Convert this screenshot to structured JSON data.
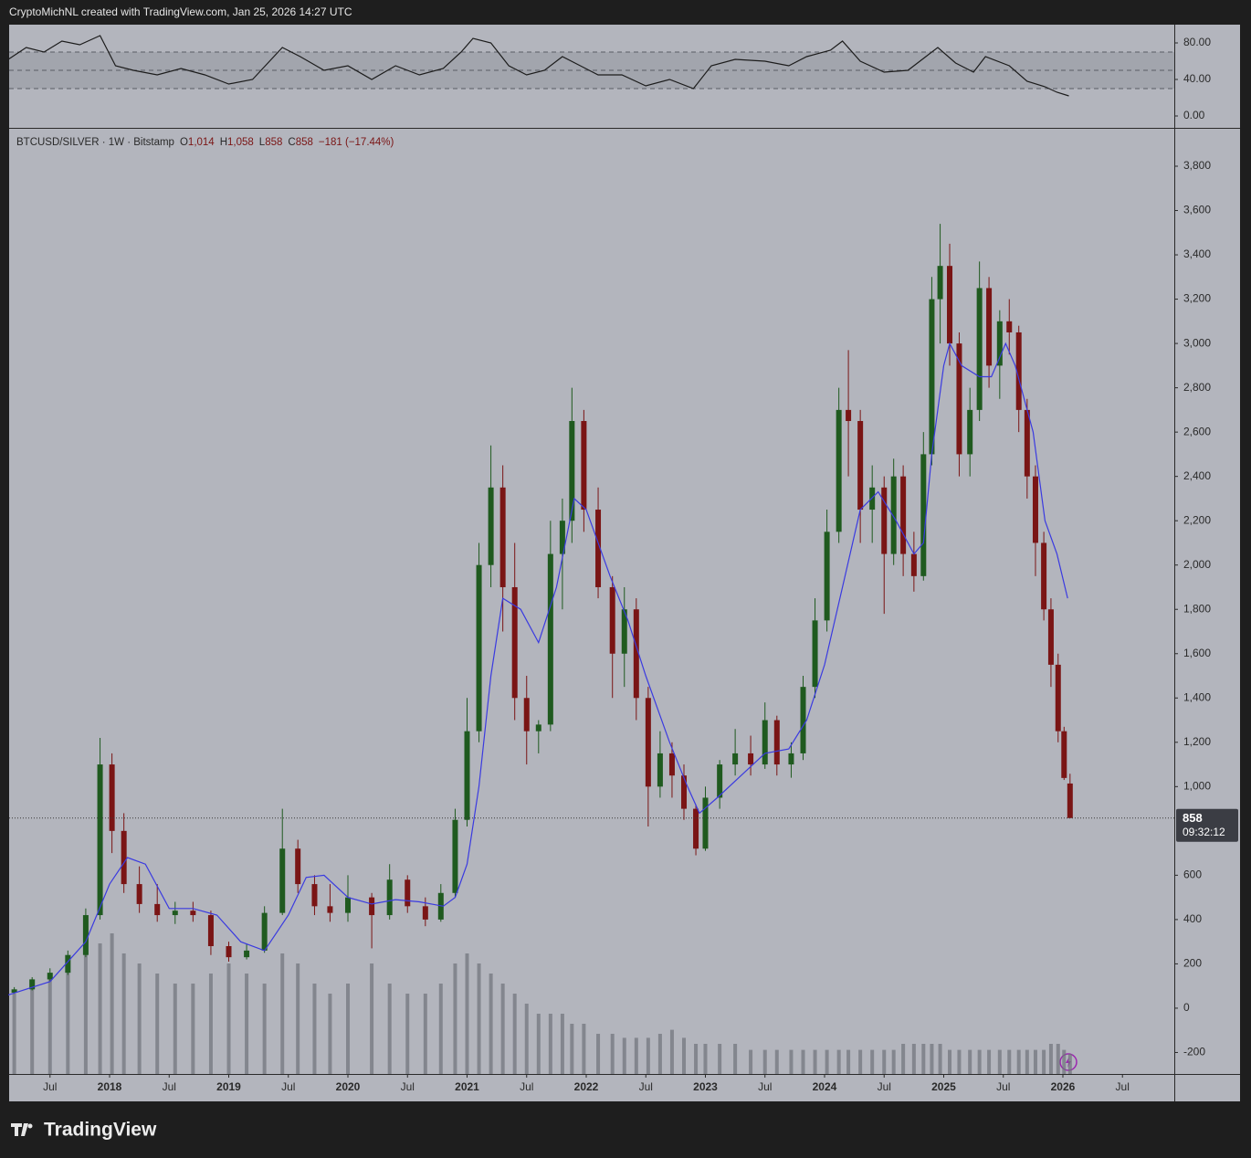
{
  "header": "CryptoMichNL created with TradingView.com, Jan 25, 2026 14:27 UTC",
  "brand": "TradingView",
  "chart_data": [
    {
      "type": "line",
      "xlim": [
        2017.157,
        2026.935
      ],
      "ylim": [
        -13,
        100
      ],
      "yticks": [
        {
          "value": 80,
          "label": "80.00"
        },
        {
          "value": 40,
          "label": "40.00"
        },
        {
          "value": 0,
          "label": "0.00"
        }
      ],
      "levels": [
        70,
        50,
        30
      ],
      "color": "#1c1c1c",
      "x": [
        2017.15,
        2017.3,
        2017.45,
        2017.6,
        2017.75,
        2017.92,
        2018.05,
        2018.2,
        2018.4,
        2018.6,
        2018.8,
        2019.0,
        2019.2,
        2019.45,
        2019.6,
        2019.8,
        2020.0,
        2020.2,
        2020.4,
        2020.6,
        2020.8,
        2020.95,
        2021.05,
        2021.2,
        2021.35,
        2021.5,
        2021.65,
        2021.8,
        2021.95,
        2022.1,
        2022.3,
        2022.5,
        2022.7,
        2022.9,
        2023.05,
        2023.25,
        2023.5,
        2023.7,
        2023.85,
        2024.05,
        2024.15,
        2024.3,
        2024.5,
        2024.7,
        2024.85,
        2024.95,
        2025.1,
        2025.25,
        2025.35,
        2025.55,
        2025.7,
        2025.85,
        2025.95,
        2026.05
      ],
      "values": [
        62,
        75,
        70,
        82,
        78,
        88,
        55,
        50,
        45,
        52,
        45,
        35,
        40,
        75,
        65,
        50,
        55,
        40,
        55,
        45,
        52,
        70,
        85,
        80,
        55,
        45,
        50,
        65,
        55,
        45,
        45,
        33,
        40,
        30,
        55,
        62,
        60,
        55,
        65,
        72,
        82,
        60,
        48,
        50,
        65,
        75,
        58,
        48,
        65,
        55,
        38,
        32,
        26,
        22
      ]
    },
    {
      "type": "candlestick",
      "legend": {
        "symbol": "BTCUSD/SILVER · 1W · Bitstamp",
        "items": [
          {
            "label": "O",
            "value": "1,014"
          },
          {
            "label": "H",
            "value": "1,058"
          },
          {
            "label": "L",
            "value": "858"
          },
          {
            "label": "C",
            "value": "858"
          }
        ],
        "change": "−181 (−17.44%)"
      },
      "last_price": {
        "value": 858,
        "label": "858"
      },
      "countdown": "09:32:12",
      "xlim": [
        2017.157,
        2026.935
      ],
      "ylim": [
        -297,
        3969
      ],
      "xticks": [
        {
          "value": 2017.5,
          "label": "Jul"
        },
        2018,
        {
          "value": 2018.5,
          "label": "Jul"
        },
        2019,
        {
          "value": 2019.5,
          "label": "Jul"
        },
        2020,
        {
          "value": 2020.5,
          "label": "Jul"
        },
        2021,
        {
          "value": 2021.5,
          "label": "Jul"
        },
        2022,
        {
          "value": 2022.5,
          "label": "Jul"
        },
        2023,
        {
          "value": 2023.5,
          "label": "Jul"
        },
        2024,
        {
          "value": 2024.5,
          "label": "Jul"
        },
        2025,
        {
          "value": 2025.5,
          "label": "Jul"
        },
        2026,
        {
          "value": 2026.5,
          "label": "Jul"
        }
      ],
      "yticks": [
        {
          "value": 3800,
          "label": "3,800"
        },
        {
          "value": 3600,
          "label": "3,600"
        },
        {
          "value": 3400,
          "label": "3,400"
        },
        {
          "value": 3200,
          "label": "3,200"
        },
        {
          "value": 3000,
          "label": "3,000"
        },
        {
          "value": 2800,
          "label": "2,800"
        },
        {
          "value": 2600,
          "label": "2,600"
        },
        {
          "value": 2400,
          "label": "2,400"
        },
        {
          "value": 2200,
          "label": "2,200"
        },
        {
          "value": 2000,
          "label": "2,000"
        },
        {
          "value": 1800,
          "label": "1,800"
        },
        {
          "value": 1600,
          "label": "1,600"
        },
        {
          "value": 1400,
          "label": "1,400"
        },
        {
          "value": 1200,
          "label": "1,200"
        },
        {
          "value": 1000,
          "label": "1,000"
        },
        600,
        400,
        200,
        0,
        -200
      ],
      "up_color": "#1f5a1f",
      "down_color": "#7a1515",
      "candles": {
        "x": [
          2017.2,
          2017.35,
          2017.5,
          2017.65,
          2017.8,
          2017.92,
          2018.02,
          2018.12,
          2018.25,
          2018.4,
          2018.55,
          2018.7,
          2018.85,
          2019.0,
          2019.15,
          2019.3,
          2019.45,
          2019.58,
          2019.72,
          2019.85,
          2020.0,
          2020.2,
          2020.35,
          2020.5,
          2020.65,
          2020.78,
          2020.9,
          2021.0,
          2021.1,
          2021.2,
          2021.3,
          2021.4,
          2021.5,
          2021.6,
          2021.7,
          2021.8,
          2021.88,
          2021.98,
          2022.1,
          2022.22,
          2022.32,
          2022.42,
          2022.52,
          2022.62,
          2022.72,
          2022.82,
          2022.92,
          2023.0,
          2023.12,
          2023.25,
          2023.38,
          2023.5,
          2023.6,
          2023.72,
          2023.82,
          2023.92,
          2024.02,
          2024.12,
          2024.2,
          2024.3,
          2024.4,
          2024.5,
          2024.58,
          2024.66,
          2024.75,
          2024.83,
          2024.9,
          2024.97,
          2025.05,
          2025.13,
          2025.22,
          2025.3,
          2025.38,
          2025.47,
          2025.55,
          2025.63,
          2025.7,
          2025.77,
          2025.84,
          2025.9,
          2025.96,
          2026.01,
          2026.06
        ],
        "open": [
          70,
          85,
          130,
          160,
          240,
          420,
          1100,
          800,
          560,
          470,
          420,
          440,
          420,
          280,
          230,
          260,
          430,
          720,
          560,
          460,
          430,
          500,
          420,
          580,
          460,
          400,
          520,
          850,
          1250,
          2000,
          2350,
          1900,
          1400,
          1250,
          1280,
          2050,
          2200,
          2650,
          2250,
          1900,
          1600,
          1800,
          1400,
          1000,
          1150,
          1050,
          900,
          720,
          950,
          1100,
          1150,
          1100,
          1300,
          1100,
          1150,
          1450,
          1750,
          2150,
          2700,
          2650,
          2250,
          2350,
          2050,
          2400,
          2050,
          1950,
          2500,
          3200,
          3350,
          3000,
          2500,
          2700,
          3250,
          2900,
          3100,
          3050,
          2700,
          2400,
          2100,
          1800,
          1550,
          1250,
          1014
        ],
        "high": [
          95,
          140,
          180,
          260,
          450,
          1220,
          1150,
          880,
          640,
          560,
          480,
          480,
          440,
          300,
          290,
          460,
          900,
          760,
          600,
          560,
          600,
          520,
          650,
          600,
          500,
          560,
          900,
          1400,
          2100,
          2540,
          2450,
          2100,
          1500,
          1300,
          2200,
          2300,
          2800,
          2700,
          2350,
          1950,
          1900,
          1850,
          1450,
          1250,
          1200,
          1100,
          920,
          1000,
          1120,
          1260,
          1230,
          1380,
          1320,
          1200,
          1500,
          1850,
          2250,
          2800,
          2970,
          2700,
          2450,
          2400,
          2480,
          2450,
          2150,
          2600,
          3300,
          3540,
          3450,
          3050,
          2800,
          3370,
          3300,
          3150,
          3200,
          3080,
          2750,
          2450,
          2150,
          1850,
          1600,
          1270,
          1058
        ],
        "low": [
          65,
          80,
          120,
          150,
          230,
          400,
          700,
          520,
          430,
          390,
          380,
          390,
          240,
          210,
          220,
          250,
          420,
          520,
          420,
          390,
          390,
          270,
          400,
          430,
          370,
          390,
          500,
          820,
          1200,
          1900,
          1700,
          1300,
          1100,
          1150,
          1250,
          1800,
          2100,
          2150,
          1850,
          1400,
          1450,
          1300,
          820,
          950,
          950,
          850,
          690,
          710,
          900,
          1050,
          1050,
          1080,
          1050,
          1040,
          1120,
          1400,
          1700,
          2100,
          2400,
          2100,
          2100,
          1780,
          2000,
          1950,
          1880,
          1930,
          2450,
          3000,
          2900,
          2400,
          2400,
          2650,
          2800,
          2750,
          2950,
          2600,
          2300,
          1950,
          1750,
          1450,
          1200,
          1030,
          858
        ],
        "close": [
          85,
          130,
          160,
          240,
          420,
          1100,
          800,
          560,
          470,
          420,
          440,
          420,
          280,
          230,
          260,
          430,
          720,
          560,
          460,
          430,
          500,
          420,
          580,
          460,
          400,
          520,
          850,
          1250,
          2000,
          2350,
          1900,
          1400,
          1250,
          1280,
          2050,
          2200,
          2650,
          2250,
          1900,
          1600,
          1800,
          1400,
          1000,
          1150,
          1050,
          900,
          720,
          950,
          1100,
          1150,
          1100,
          1300,
          1100,
          1150,
          1450,
          1750,
          2150,
          2700,
          2650,
          2250,
          2350,
          2050,
          2400,
          2050,
          1950,
          2500,
          3200,
          3350,
          3000,
          2500,
          2700,
          3250,
          2900,
          3100,
          3050,
          2700,
          2400,
          2100,
          1800,
          1550,
          1250,
          1039,
          858
        ]
      },
      "volume": {
        "color": "#6f727b",
        "values": [
          40,
          45,
          50,
          55,
          60,
          65,
          70,
          60,
          55,
          50,
          45,
          45,
          50,
          55,
          50,
          45,
          60,
          55,
          45,
          40,
          45,
          55,
          45,
          40,
          40,
          45,
          55,
          60,
          55,
          50,
          45,
          40,
          35,
          30,
          30,
          30,
          25,
          25,
          20,
          20,
          18,
          18,
          18,
          20,
          22,
          18,
          15,
          15,
          15,
          15,
          12,
          12,
          12,
          12,
          12,
          12,
          12,
          12,
          12,
          12,
          12,
          12,
          12,
          15,
          15,
          15,
          15,
          15,
          12,
          12,
          12,
          12,
          12,
          12,
          12,
          12,
          12,
          12,
          12,
          15,
          15,
          12,
          10
        ]
      },
      "ma": {
        "color": "#3a3ae0",
        "x": [
          2017.15,
          2017.5,
          2017.8,
          2018.0,
          2018.15,
          2018.3,
          2018.5,
          2018.7,
          2018.9,
          2019.1,
          2019.3,
          2019.5,
          2019.65,
          2019.8,
          2020.0,
          2020.2,
          2020.4,
          2020.6,
          2020.8,
          2020.9,
          2021.0,
          2021.1,
          2021.2,
          2021.3,
          2021.45,
          2021.6,
          2021.75,
          2021.9,
          2022.0,
          2022.2,
          2022.35,
          2022.5,
          2022.7,
          2022.85,
          2022.95,
          2023.1,
          2023.3,
          2023.5,
          2023.7,
          2023.85,
          2024.0,
          2024.15,
          2024.3,
          2024.45,
          2024.6,
          2024.75,
          2024.83,
          2024.9,
          2025.0,
          2025.05,
          2025.15,
          2025.3,
          2025.4,
          2025.52,
          2025.6,
          2025.75,
          2025.85,
          2025.95,
          2026.04
        ],
        "values": [
          60,
          120,
          300,
          560,
          680,
          650,
          450,
          450,
          420,
          300,
          260,
          420,
          590,
          600,
          500,
          470,
          490,
          480,
          460,
          500,
          650,
          1000,
          1500,
          1850,
          1800,
          1650,
          1900,
          2300,
          2250,
          1950,
          1750,
          1500,
          1200,
          1000,
          880,
          950,
          1050,
          1150,
          1170,
          1300,
          1550,
          1900,
          2250,
          2330,
          2200,
          2050,
          2100,
          2500,
          2900,
          3000,
          2900,
          2850,
          2850,
          3000,
          2900,
          2600,
          2200,
          2050,
          1850
        ]
      }
    }
  ]
}
